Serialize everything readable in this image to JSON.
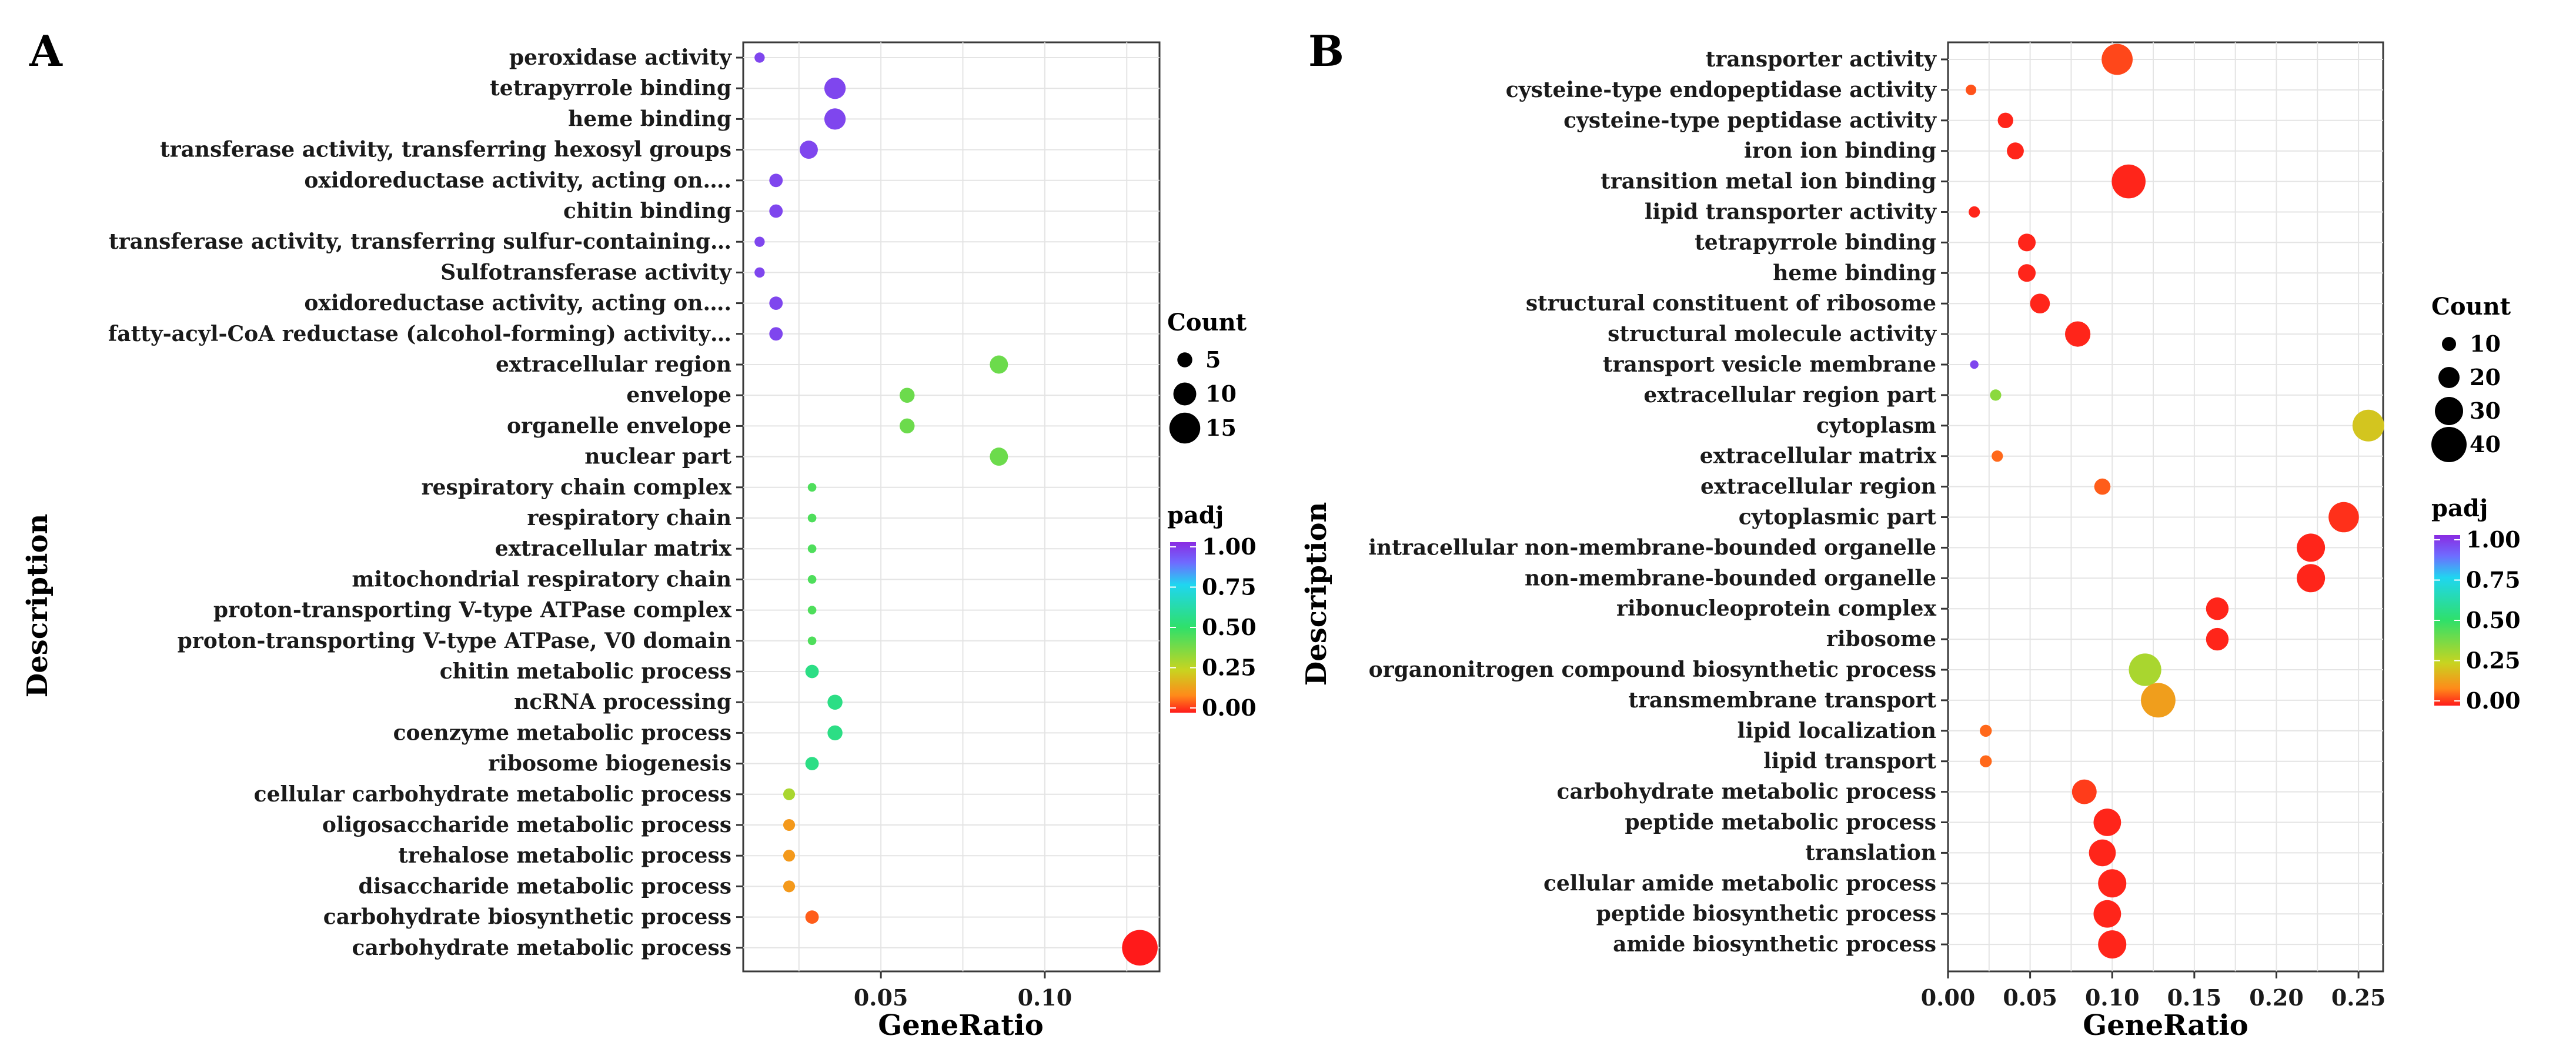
{
  "chart_data": [
    {
      "type": "scatter",
      "panel_label": "A",
      "xlabel": "GeneRatio",
      "ylabel": "Description",
      "xlim": [
        0.008,
        0.135
      ],
      "xticks": [
        0.05,
        0.1
      ],
      "xtick_labels": [
        "0.05",
        "0.10"
      ],
      "size_legend": {
        "title": "Count",
        "values": [
          5,
          10,
          15
        ],
        "labels": [
          "5",
          "10",
          "15"
        ]
      },
      "color_legend": {
        "title": "padj",
        "range": [
          0.0,
          1.0
        ],
        "labels": [
          "1.00",
          "0.75",
          "0.50",
          "0.25",
          "0.00"
        ]
      },
      "points": [
        {
          "term": "peroxidase activity",
          "gene_ratio": 0.013,
          "count": 2,
          "padj": 0.95
        },
        {
          "term": "tetrapyrrole binding",
          "gene_ratio": 0.036,
          "count": 9,
          "padj": 0.95
        },
        {
          "term": "heme binding",
          "gene_ratio": 0.036,
          "count": 9,
          "padj": 0.95
        },
        {
          "term": "transferase activity, transferring hexosyl groups",
          "gene_ratio": 0.028,
          "count": 7,
          "padj": 0.95
        },
        {
          "term": "oxidoreductase activity, acting on….",
          "gene_ratio": 0.018,
          "count": 4,
          "padj": 0.95
        },
        {
          "term": "chitin binding",
          "gene_ratio": 0.018,
          "count": 4,
          "padj": 0.95
        },
        {
          "term": "transferase activity, transferring sulfur-containing…",
          "gene_ratio": 0.013,
          "count": 2,
          "padj": 0.95
        },
        {
          "term": "Sulfotransferase activity",
          "gene_ratio": 0.013,
          "count": 2,
          "padj": 0.95
        },
        {
          "term": "oxidoreductase activity, acting on….",
          "gene_ratio": 0.018,
          "count": 4,
          "padj": 0.95
        },
        {
          "term": "fatty-acyl-CoA reductase (alcohol-forming) activity…",
          "gene_ratio": 0.018,
          "count": 4,
          "padj": 0.95
        },
        {
          "term": "extracellular region",
          "gene_ratio": 0.086,
          "count": 7,
          "padj": 0.4
        },
        {
          "term": "envelope",
          "gene_ratio": 0.058,
          "count": 5,
          "padj": 0.4
        },
        {
          "term": "organelle envelope",
          "gene_ratio": 0.058,
          "count": 5,
          "padj": 0.4
        },
        {
          "term": "nuclear part",
          "gene_ratio": 0.086,
          "count": 7,
          "padj": 0.4
        },
        {
          "term": "respiratory chain complex",
          "gene_ratio": 0.029,
          "count": 1,
          "padj": 0.45
        },
        {
          "term": "respiratory chain",
          "gene_ratio": 0.029,
          "count": 1,
          "padj": 0.45
        },
        {
          "term": "extracellular matrix",
          "gene_ratio": 0.029,
          "count": 1,
          "padj": 0.45
        },
        {
          "term": "mitochondrial respiratory chain",
          "gene_ratio": 0.029,
          "count": 1,
          "padj": 0.45
        },
        {
          "term": "proton-transporting V-type ATPase complex",
          "gene_ratio": 0.029,
          "count": 1,
          "padj": 0.45
        },
        {
          "term": "proton-transporting V-type ATPase, V0 domain",
          "gene_ratio": 0.029,
          "count": 1,
          "padj": 0.45
        },
        {
          "term": "chitin metabolic process",
          "gene_ratio": 0.029,
          "count": 4,
          "padj": 0.55
        },
        {
          "term": "ncRNA processing",
          "gene_ratio": 0.036,
          "count": 5,
          "padj": 0.55
        },
        {
          "term": "coenzyme metabolic process",
          "gene_ratio": 0.036,
          "count": 5,
          "padj": 0.55
        },
        {
          "term": "ribosome biogenesis",
          "gene_ratio": 0.029,
          "count": 4,
          "padj": 0.55
        },
        {
          "term": "cellular carbohydrate metabolic process",
          "gene_ratio": 0.022,
          "count": 3,
          "padj": 0.3
        },
        {
          "term": "oligosaccharide metabolic process",
          "gene_ratio": 0.022,
          "count": 3,
          "padj": 0.13
        },
        {
          "term": "trehalose metabolic process",
          "gene_ratio": 0.022,
          "count": 3,
          "padj": 0.13
        },
        {
          "term": "disaccharide metabolic process",
          "gene_ratio": 0.022,
          "count": 3,
          "padj": 0.13
        },
        {
          "term": "carbohydrate biosynthetic process",
          "gene_ratio": 0.029,
          "count": 4,
          "padj": 0.06
        },
        {
          "term": "carbohydrate metabolic process",
          "gene_ratio": 0.129,
          "count": 18,
          "padj": 0.0
        }
      ]
    },
    {
      "type": "scatter",
      "panel_label": "B",
      "xlabel": "GeneRatio",
      "ylabel": "Description",
      "xlim": [
        0.0,
        0.265
      ],
      "xticks": [
        0.0,
        0.05,
        0.1,
        0.15,
        0.2,
        0.25
      ],
      "xtick_labels": [
        "0.00",
        "0.05",
        "0.10",
        "0.15",
        "0.20",
        "0.25"
      ],
      "size_legend": {
        "title": "Count",
        "values": [
          10,
          20,
          30,
          40
        ],
        "labels": [
          "10",
          "20",
          "30",
          "40"
        ]
      },
      "color_legend": {
        "title": "padj",
        "range": [
          0.0,
          1.0
        ],
        "labels": [
          "1.00",
          "0.75",
          "0.50",
          "0.25",
          "0.00"
        ]
      },
      "points": [
        {
          "term": "transporter activity",
          "gene_ratio": 0.103,
          "count": 34,
          "padj": 0.04
        },
        {
          "term": "cysteine-type endopeptidase activity",
          "gene_ratio": 0.014,
          "count": 5,
          "padj": 0.05
        },
        {
          "term": "cysteine-type peptidase activity",
          "gene_ratio": 0.035,
          "count": 12,
          "padj": 0.01
        },
        {
          "term": "iron ion binding",
          "gene_ratio": 0.041,
          "count": 14,
          "padj": 0.01
        },
        {
          "term": "transition metal ion binding",
          "gene_ratio": 0.11,
          "count": 38,
          "padj": 0.01
        },
        {
          "term": "lipid transporter activity",
          "gene_ratio": 0.016,
          "count": 6,
          "padj": 0.01
        },
        {
          "term": "tetrapyrrole binding",
          "gene_ratio": 0.048,
          "count": 15,
          "padj": 0.01
        },
        {
          "term": "heme binding",
          "gene_ratio": 0.048,
          "count": 15,
          "padj": 0.01
        },
        {
          "term": "structural constituent of ribosome",
          "gene_ratio": 0.056,
          "count": 18,
          "padj": 0.01
        },
        {
          "term": "structural molecule activity",
          "gene_ratio": 0.079,
          "count": 26,
          "padj": 0.01
        },
        {
          "term": "transport vesicle membrane",
          "gene_ratio": 0.016,
          "count": 2,
          "padj": 0.95
        },
        {
          "term": "extracellular region part",
          "gene_ratio": 0.029,
          "count": 6,
          "padj": 0.35
        },
        {
          "term": "cytoplasm",
          "gene_ratio": 0.256,
          "count": 35,
          "padj": 0.22
        },
        {
          "term": "extracellular matrix",
          "gene_ratio": 0.03,
          "count": 6,
          "padj": 0.07
        },
        {
          "term": "extracellular region",
          "gene_ratio": 0.094,
          "count": 13,
          "padj": 0.06
        },
        {
          "term": "cytoplasmic part",
          "gene_ratio": 0.241,
          "count": 33,
          "padj": 0.02
        },
        {
          "term": "intracellular non-membrane-bounded organelle",
          "gene_ratio": 0.221,
          "count": 30,
          "padj": 0.01
        },
        {
          "term": "non-membrane-bounded organelle",
          "gene_ratio": 0.221,
          "count": 30,
          "padj": 0.01
        },
        {
          "term": "ribonucleoprotein complex",
          "gene_ratio": 0.164,
          "count": 22,
          "padj": 0.01
        },
        {
          "term": "ribosome",
          "gene_ratio": 0.164,
          "count": 22,
          "padj": 0.01
        },
        {
          "term": "organonitrogen compound biosynthetic process",
          "gene_ratio": 0.12,
          "count": 36,
          "padj": 0.3
        },
        {
          "term": "transmembrane transport",
          "gene_ratio": 0.128,
          "count": 39,
          "padj": 0.14
        },
        {
          "term": "lipid localization",
          "gene_ratio": 0.023,
          "count": 7,
          "padj": 0.07
        },
        {
          "term": "lipid transport",
          "gene_ratio": 0.023,
          "count": 7,
          "padj": 0.07
        },
        {
          "term": "carbohydrate metabolic process",
          "gene_ratio": 0.083,
          "count": 25,
          "padj": 0.03
        },
        {
          "term": "peptide metabolic process",
          "gene_ratio": 0.097,
          "count": 29,
          "padj": 0.01
        },
        {
          "term": "translation",
          "gene_ratio": 0.094,
          "count": 28,
          "padj": 0.01
        },
        {
          "term": "cellular amide metabolic process",
          "gene_ratio": 0.1,
          "count": 30,
          "padj": 0.01
        },
        {
          "term": "peptide biosynthetic process",
          "gene_ratio": 0.097,
          "count": 29,
          "padj": 0.01
        },
        {
          "term": "amide biosynthetic process",
          "gene_ratio": 0.1,
          "count": 30,
          "padj": 0.01
        }
      ]
    }
  ]
}
